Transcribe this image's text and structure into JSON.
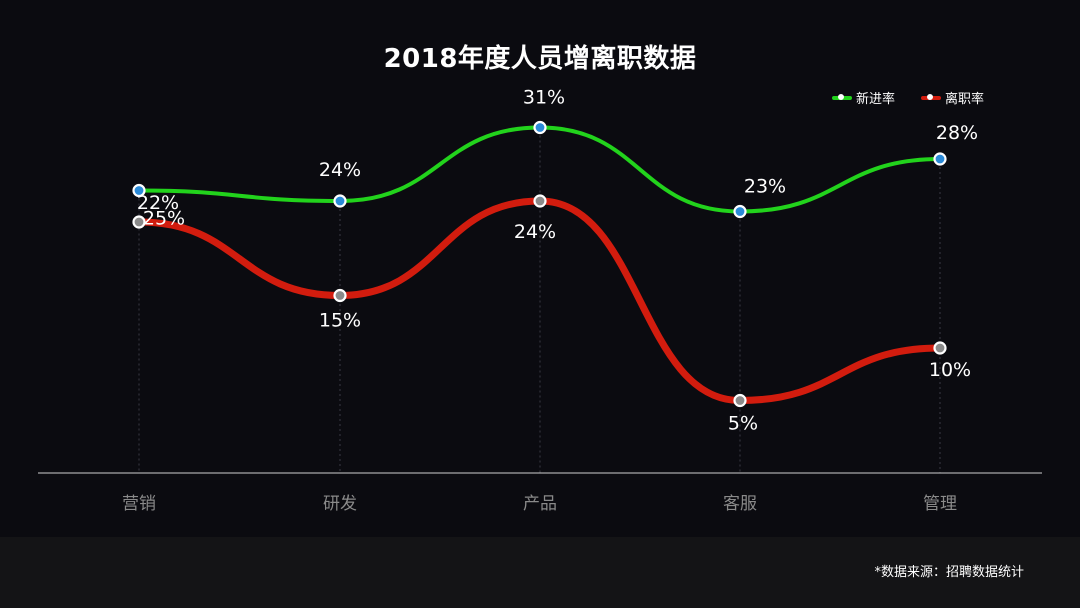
{
  "chart_data": {
    "type": "line",
    "title": "2018年度人员增离职数据",
    "categories": [
      "营销",
      "研发",
      "产品",
      "客服",
      "管理"
    ],
    "series": [
      {
        "name": "新进率",
        "color": "#22d31c",
        "values": [
          25,
          24,
          31,
          23,
          28
        ],
        "labels": [
          "25%",
          "24%",
          "31%",
          "23%",
          "28%"
        ]
      },
      {
        "name": "离职率",
        "color": "#d21c0e",
        "values": [
          22,
          15,
          24,
          5,
          10
        ],
        "labels": [
          "22%",
          "15%",
          "24%",
          "5%",
          "10%"
        ]
      }
    ],
    "grid": false,
    "legend_position": "top-right"
  },
  "colors": {
    "background": "#0b0b10",
    "footer": "#141416",
    "axis": "#cfcfcf",
    "category_label": "#8a8a8a",
    "marker_fill_green": "#2a8ad8",
    "marker_fill_red": "#8a8a8a"
  },
  "footer": {
    "source_note": "*数据来源：招聘数据统计"
  }
}
